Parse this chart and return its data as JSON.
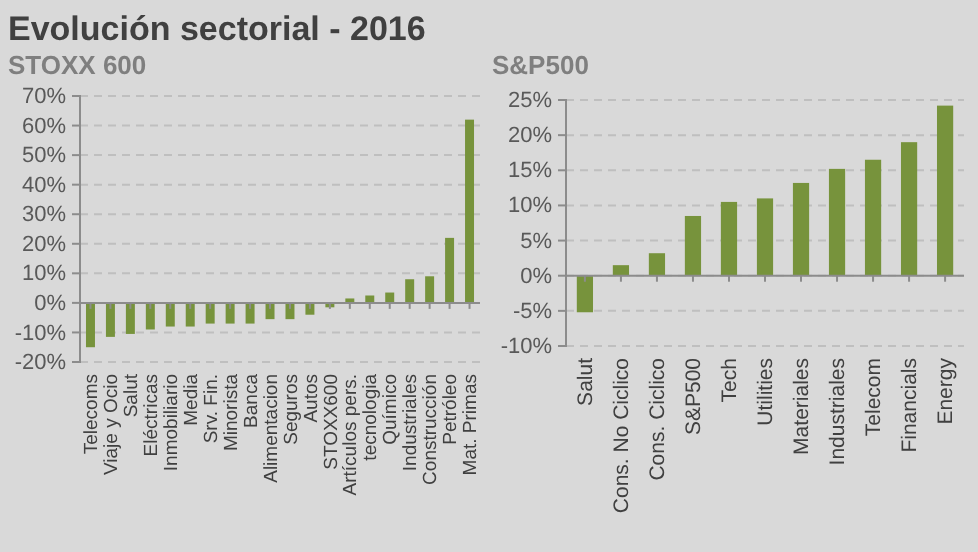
{
  "chart_data": [
    {
      "type": "bar",
      "title": "Evolución sectorial - 2016",
      "subtitle": "STOXX 600",
      "categories": [
        "Telecoms",
        "Viaje y Ocio",
        "Salut",
        "Eléctricas",
        "Inmobiliario",
        "Media",
        "Srv. Fin.",
        "Minorista",
        "Banca",
        "Alimentacion",
        "Seguros",
        "Autos",
        "STOXX600",
        "Artículos pers.",
        "tecnologia",
        "Químico",
        "Industriales",
        "Construcción",
        "Petróleo",
        "Mat. Primas"
      ],
      "values": [
        -15,
        -11.5,
        -10.5,
        -9,
        -8,
        -8,
        -7,
        -7,
        -7,
        -5.5,
        -5.5,
        -4,
        -1.5,
        1.5,
        2.5,
        3.5,
        8,
        9,
        22,
        62
      ],
      "color": "#77933c",
      "ylim": [
        -20,
        70
      ],
      "yticks": [
        {
          "value": -20,
          "label": "-20%"
        },
        {
          "value": -10,
          "label": "-10%"
        },
        {
          "value": 0,
          "label": "0%"
        },
        {
          "value": 10,
          "label": "10%"
        },
        {
          "value": 20,
          "label": "20%"
        },
        {
          "value": 30,
          "label": "30%"
        },
        {
          "value": 40,
          "label": "40%"
        },
        {
          "value": 50,
          "label": "50%"
        },
        {
          "value": 60,
          "label": "60%"
        },
        {
          "value": 70,
          "label": "70%"
        }
      ],
      "grid": "y"
    },
    {
      "type": "bar",
      "title": "S&P500",
      "categories": [
        "Salut",
        "Cons. No Ciclico",
        "Cons. Ciclico",
        "S&P500",
        "Tech",
        "Utilities",
        "Materiales",
        "Industriales",
        "Telecom",
        "Financials",
        "Energy"
      ],
      "values": [
        -5.2,
        1.5,
        3.2,
        8.5,
        10.5,
        11,
        13.2,
        15.2,
        16.5,
        19,
        24.2
      ],
      "color": "#77933c",
      "ylim": [
        -10,
        25
      ],
      "yticks": [
        {
          "value": -10,
          "label": "-10%"
        },
        {
          "value": -5,
          "label": "-5%"
        },
        {
          "value": 0,
          "label": "0%"
        },
        {
          "value": 5,
          "label": "5%"
        },
        {
          "value": 10,
          "label": "10%"
        },
        {
          "value": 15,
          "label": "15%"
        },
        {
          "value": 20,
          "label": "20%"
        },
        {
          "value": 25,
          "label": "25%"
        }
      ],
      "grid": "y"
    }
  ]
}
